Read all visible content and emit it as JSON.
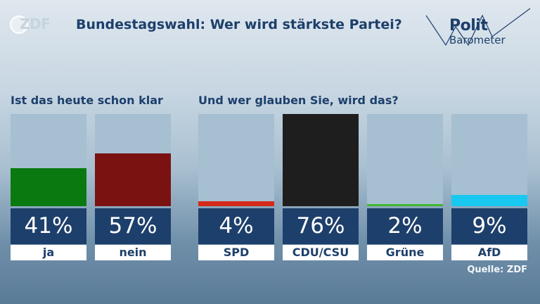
{
  "header": {
    "logo_text": "ZDF",
    "title": "Bundestagswahl: Wer wird stärkste Partei?",
    "brand_line1": "Polit",
    "brand_line2": "Barometer"
  },
  "source": "Quelle: ZDF",
  "colors": {
    "title": "#1d3f6b",
    "track": "#a6bfd1",
    "value_box": "#1d3f6b"
  },
  "chart_data": [
    {
      "type": "bar",
      "title": "Ist das heute schon klar",
      "categories": [
        "ja",
        "nein"
      ],
      "values": [
        41,
        57
      ],
      "value_labels": [
        "41%",
        "57%"
      ],
      "colors": [
        "#0a7a10",
        "#7a1212"
      ],
      "ylim": [
        0,
        100
      ]
    },
    {
      "type": "bar",
      "title": "Und wer glauben Sie, wird das?",
      "categories": [
        "SPD",
        "CDU/CSU",
        "Grüne",
        "AfD"
      ],
      "values": [
        4,
        76,
        2,
        9
      ],
      "value_labels": [
        "4%",
        "76%",
        "2%",
        "9%"
      ],
      "colors": [
        "#d42a1a",
        "#1e1e1e",
        "#42b830",
        "#18c8f0"
      ],
      "ylim": [
        0,
        76
      ]
    }
  ]
}
